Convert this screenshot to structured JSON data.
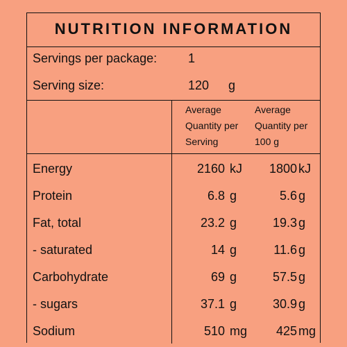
{
  "title": "NUTRITION INFORMATION",
  "servings_per_package": {
    "label": "Servings per package:",
    "value": "1"
  },
  "serving_size": {
    "label": "Serving size:",
    "value": "120",
    "unit": "g"
  },
  "columns": {
    "per_serving": [
      "Average",
      "Quantity per",
      "Serving"
    ],
    "per_100g": [
      "Average",
      "Quantity per",
      "100 g"
    ]
  },
  "rows": [
    {
      "name": "Energy",
      "serving": "2160",
      "serving_unit": "kJ",
      "per100": "1800",
      "per100_unit": "kJ"
    },
    {
      "name": "Protein",
      "serving": "6.8",
      "serving_unit": "g",
      "per100": "5.6",
      "per100_unit": "g"
    },
    {
      "name": "Fat, total",
      "serving": "23.2",
      "serving_unit": "g",
      "per100": "19.3",
      "per100_unit": "g"
    },
    {
      "name": "- saturated",
      "serving": "14",
      "serving_unit": "g",
      "per100": "11.6",
      "per100_unit": "g"
    },
    {
      "name": "Carbohydrate",
      "serving": "69",
      "serving_unit": "g",
      "per100": "57.5",
      "per100_unit": "g"
    },
    {
      "name": "- sugars",
      "serving": "37.1",
      "serving_unit": "g",
      "per100": "30.9",
      "per100_unit": "g"
    },
    {
      "name": "Sodium",
      "serving": "510",
      "serving_unit": "mg",
      "per100": "425",
      "per100_unit": "mg"
    }
  ],
  "colors": {
    "background": "#f8a080",
    "text": "#111111"
  }
}
